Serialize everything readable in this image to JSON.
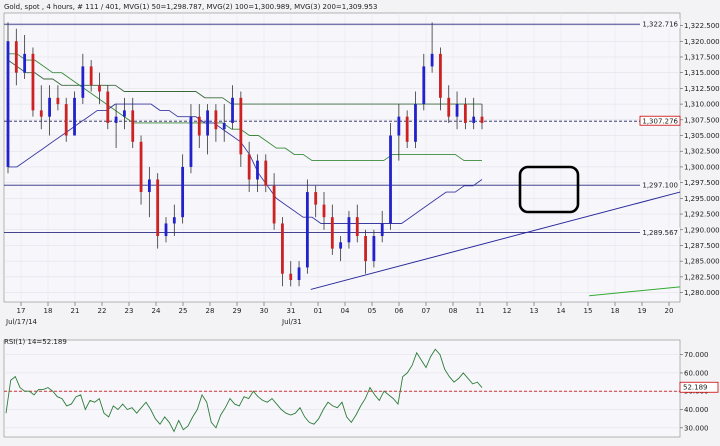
{
  "title": "Gold, spot , 4 hours, # 111 / 401, MVG(1) 50=1,298.787, MVG(2) 100=1,300.989, MVG(3) 200=1,309.953",
  "chart_data": [
    {
      "type": "candlestick",
      "title": "Gold, spot , 4 hours, # 111 / 401, MVG(1) 50=1,298.787, MVG(2) 100=1,300.989, MVG(3) 200=1,309.953",
      "x_ticks": [
        "17",
        "18",
        "21",
        "22",
        "23",
        "24",
        "25",
        "28",
        "29",
        "30",
        "31",
        "01",
        "04",
        "05",
        "06",
        "07",
        "08",
        "11",
        "12",
        "13",
        "14",
        "15",
        "18",
        "19",
        "20"
      ],
      "x_sublabels": [
        "Jul/17/14",
        "Jul/31"
      ],
      "y_ticks": [
        {
          "v": 1280.0,
          "label": "1,280.000"
        },
        {
          "v": 1282.5,
          "label": "1,282.500"
        },
        {
          "v": 1285.0,
          "label": "1,285.000"
        },
        {
          "v": 1287.5,
          "label": "1,287.500"
        },
        {
          "v": 1290.0,
          "label": "1,290.000"
        },
        {
          "v": 1292.5,
          "label": "1,292.500"
        },
        {
          "v": 1295.0,
          "label": "1,295.000"
        },
        {
          "v": 1297.5,
          "label": "1,297.500"
        },
        {
          "v": 1300.0,
          "label": "1,300.000"
        },
        {
          "v": 1302.5,
          "label": "1,302.500"
        },
        {
          "v": 1305.0,
          "label": "1,305.000"
        },
        {
          "v": 1307.5,
          "label": "1,307.500"
        },
        {
          "v": 1310.0,
          "label": "1,310.000"
        },
        {
          "v": 1312.5,
          "label": "1,312.500"
        },
        {
          "v": 1315.0,
          "label": "1,315.000"
        },
        {
          "v": 1317.5,
          "label": "1,317.500"
        },
        {
          "v": 1320.0,
          "label": "1,320.000"
        },
        {
          "v": 1322.5,
          "label": "1,322.500"
        }
      ],
      "ylim": [
        1278.5,
        1324.5
      ],
      "levels": [
        {
          "v": 1322.716,
          "label": "1,322.716",
          "style": "solid"
        },
        {
          "v": 1307.276,
          "label": "1,307.276",
          "style": "dashed"
        },
        {
          "v": 1297.1,
          "label": "1,297.100",
          "style": "solid"
        },
        {
          "v": 1289.567,
          "label": "1,289.567",
          "style": "solid"
        }
      ],
      "trendlines": [
        {
          "from": [
            30.4,
            1280.5
          ],
          "to": [
            67,
            1296.0
          ],
          "color": "#2a2a9c"
        },
        {
          "from": [
            58,
            1279.5
          ],
          "to": [
            67,
            1280.9
          ],
          "color": "#33aa33"
        }
      ],
      "candles": [
        [
          1300,
          1323,
          1299,
          1320
        ],
        [
          1320,
          1322,
          1313,
          1315
        ],
        [
          1315,
          1321,
          1314,
          1318
        ],
        [
          1318,
          1319,
          1308,
          1309
        ],
        [
          1309,
          1313,
          1306,
          1308
        ],
        [
          1308,
          1313,
          1305,
          1311
        ],
        [
          1311,
          1313,
          1309,
          1310
        ],
        [
          1310,
          1311,
          1304,
          1305
        ],
        [
          1305,
          1312,
          1305,
          1311
        ],
        [
          1311,
          1318,
          1310,
          1316
        ],
        [
          1316,
          1317,
          1312,
          1313
        ],
        [
          1313,
          1315,
          1310,
          1312
        ],
        [
          1312,
          1313,
          1306,
          1307
        ],
        [
          1307,
          1310,
          1303,
          1308
        ],
        [
          1308,
          1311,
          1306,
          1309
        ],
        [
          1309,
          1311,
          1303,
          1304
        ],
        [
          1304,
          1305,
          1294,
          1296
        ],
        [
          1296,
          1300,
          1292,
          1298
        ],
        [
          1298,
          1299,
          1287,
          1289
        ],
        [
          1289,
          1292,
          1288,
          1291
        ],
        [
          1291,
          1294,
          1289,
          1292
        ],
        [
          1292,
          1302,
          1291,
          1300
        ],
        [
          1300,
          1310,
          1299,
          1308
        ],
        [
          1308,
          1310,
          1303,
          1305
        ],
        [
          1305,
          1310,
          1302,
          1309
        ],
        [
          1309,
          1310,
          1304,
          1306
        ],
        [
          1306,
          1310,
          1304,
          1307
        ],
        [
          1307,
          1313,
          1306,
          1311
        ],
        [
          1311,
          1312,
          1300,
          1302
        ],
        [
          1302,
          1304,
          1296,
          1298
        ],
        [
          1298,
          1302,
          1296,
          1301
        ],
        [
          1301,
          1302,
          1296,
          1297
        ],
        [
          1297,
          1299,
          1290,
          1291
        ],
        [
          1291,
          1292,
          1281,
          1283
        ],
        [
          1283,
          1285,
          1281,
          1282
        ],
        [
          1282,
          1285,
          1281,
          1284
        ],
        [
          1284,
          1298,
          1283,
          1296
        ],
        [
          1296,
          1297,
          1292,
          1294
        ],
        [
          1294,
          1296,
          1290,
          1292
        ],
        [
          1292,
          1294,
          1286,
          1287
        ],
        [
          1287,
          1289,
          1285,
          1288
        ],
        [
          1288,
          1293,
          1287,
          1292
        ],
        [
          1292,
          1294,
          1288,
          1289
        ],
        [
          1289,
          1290,
          1283,
          1285
        ],
        [
          1285,
          1290,
          1284,
          1289
        ],
        [
          1289,
          1293,
          1288,
          1291
        ],
        [
          1291,
          1307,
          1290,
          1305
        ],
        [
          1305,
          1310,
          1301,
          1308
        ],
        [
          1308,
          1309,
          1303,
          1304
        ],
        [
          1304,
          1312,
          1303,
          1310
        ],
        [
          1310,
          1318,
          1309,
          1316
        ],
        [
          1316,
          1323,
          1315,
          1318
        ],
        [
          1318,
          1319,
          1309,
          1311
        ],
        [
          1311,
          1313,
          1307,
          1308
        ],
        [
          1308,
          1312,
          1306,
          1310
        ],
        [
          1310,
          1311,
          1306,
          1307
        ],
        [
          1307,
          1311,
          1306,
          1308
        ],
        [
          1308,
          1310,
          1306,
          1307
        ]
      ],
      "ma_50": [
        1300,
        1300,
        1301,
        1302,
        1303,
        1304,
        1305,
        1306,
        1307,
        1308,
        1309,
        1309,
        1310,
        1310,
        1310,
        1310,
        1310,
        1309,
        1309,
        1308,
        1308,
        1308,
        1307,
        1307,
        1306,
        1305,
        1304,
        1302,
        1299,
        1297,
        1295,
        1294,
        1293,
        1292,
        1292,
        1291,
        1291,
        1291,
        1291,
        1291,
        1291,
        1291,
        1291,
        1291,
        1291,
        1292,
        1293,
        1294,
        1295,
        1296,
        1296,
        1297,
        1297,
        1298
      ],
      "ma_100": [
        1318,
        1318,
        1317,
        1317,
        1316,
        1315,
        1315,
        1314,
        1313,
        1312,
        1311,
        1310,
        1309,
        1308,
        1307,
        1307,
        1307,
        1307,
        1307,
        1307,
        1307,
        1307,
        1307,
        1307,
        1307,
        1306,
        1306,
        1305,
        1305,
        1304,
        1303,
        1303,
        1302,
        1302,
        1301,
        1301,
        1301,
        1301,
        1301,
        1301,
        1301,
        1301,
        1301,
        1302,
        1302,
        1302,
        1302,
        1302,
        1302,
        1302,
        1302,
        1301,
        1301,
        1301
      ],
      "ma_200": [
        1317,
        1316,
        1315,
        1315,
        1314,
        1314,
        1313,
        1313,
        1313,
        1313,
        1313,
        1313,
        1313,
        1312,
        1312,
        1312,
        1312,
        1312,
        1312,
        1312,
        1312,
        1312,
        1311,
        1311,
        1311,
        1310,
        1310,
        1310,
        1310,
        1310,
        1310,
        1310,
        1310,
        1310,
        1310,
        1310,
        1310,
        1310,
        1310,
        1310,
        1310,
        1310,
        1310,
        1310,
        1310,
        1310,
        1310,
        1310,
        1310,
        1310,
        1310,
        1310,
        1310,
        1310
      ]
    },
    {
      "type": "line",
      "title": "RSI(1) 14=52.189",
      "y_ticks": [
        {
          "v": 30,
          "label": "30.000"
        },
        {
          "v": 40,
          "label": "40.000"
        },
        {
          "v": 50,
          "label": "50.000"
        },
        {
          "v": 60,
          "label": "60.000"
        },
        {
          "v": 70,
          "label": "70.000"
        }
      ],
      "ylim": [
        25,
        78
      ],
      "current": {
        "v": 52.189,
        "label": "52.189"
      },
      "reference": 50,
      "values": [
        38,
        56,
        58,
        52,
        50,
        50,
        48,
        51,
        51,
        52,
        50,
        47,
        46,
        42,
        43,
        47,
        48,
        40,
        45,
        44,
        46,
        38,
        36,
        42,
        40,
        43,
        40,
        41,
        38,
        41,
        44,
        40,
        35,
        32,
        36,
        33,
        28,
        34,
        29,
        31,
        36,
        40,
        48,
        44,
        33,
        30,
        37,
        41,
        46,
        43,
        42,
        47,
        46,
        50,
        47,
        45,
        44,
        46,
        43,
        40,
        38,
        37,
        38,
        41,
        36,
        33,
        32,
        35,
        40,
        44,
        42,
        41,
        44,
        36,
        33,
        37,
        42,
        46,
        52,
        48,
        45,
        50,
        48,
        46,
        43,
        58,
        60,
        64,
        71,
        67,
        63,
        69,
        73,
        70,
        62,
        58,
        55,
        57,
        60,
        57,
        54,
        55,
        52
      ]
    }
  ]
}
